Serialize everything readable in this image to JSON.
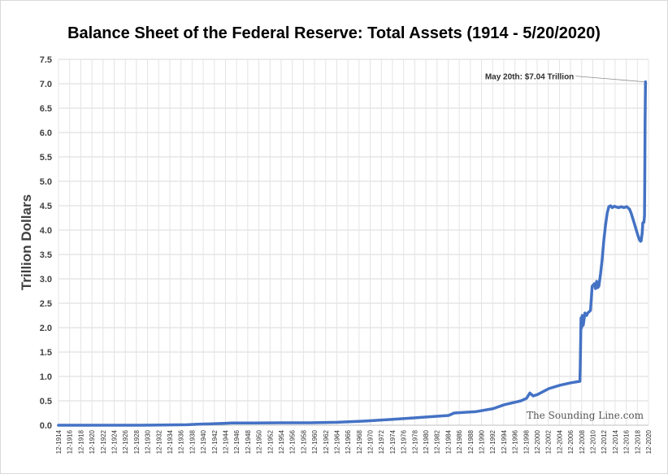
{
  "chart_data": {
    "type": "line",
    "title": "Balance Sheet of the Federal Reserve: Total Assets (1914 - 5/20/2020)",
    "ylabel": "Trillion Dollars",
    "xlabel": "",
    "ylim": [
      0,
      7.5
    ],
    "yticks": [
      "0.0",
      "0.5",
      "1.0",
      "1.5",
      "2.0",
      "2.5",
      "3.0",
      "3.5",
      "4.0",
      "4.5",
      "5.0",
      "5.5",
      "6.0",
      "6.5",
      "7.0",
      "7.5"
    ],
    "xlim": [
      1914.92,
      2020.92
    ],
    "xticks": [
      "12-1914",
      "12-1916",
      "12-1918",
      "12-1920",
      "12-1922",
      "12-1924",
      "12-1926",
      "12-1928",
      "12-1930",
      "12-1932",
      "12-1934",
      "12-1936",
      "12-1938",
      "12-1940",
      "12-1942",
      "12-1944",
      "12-1946",
      "12-1948",
      "12-1950",
      "12-1952",
      "12-1954",
      "12-1956",
      "12-1958",
      "12-1960",
      "12-1962",
      "12-1964",
      "12-1966",
      "12-1968",
      "12-1970",
      "12-1972",
      "12-1974",
      "12-1976",
      "12-1978",
      "12-1980",
      "12-1982",
      "12-1984",
      "12-1986",
      "12-1988",
      "12-1990",
      "12-1992",
      "12-1994",
      "12-1996",
      "12-1998",
      "12-2000",
      "12-2002",
      "12-2004",
      "12-2006",
      "12-2008",
      "12-2010",
      "12-2012",
      "12-2014",
      "12-2016",
      "12-2018",
      "12-2020"
    ],
    "grid": true,
    "series": [
      {
        "name": "Total Assets",
        "color": "#4472c4",
        "x": [
          1914.9,
          1920,
          1930,
          1938,
          1940,
          1945,
          1946,
          1950,
          1955,
          1960,
          1965,
          1970,
          1975,
          1980,
          1985,
          1986,
          1990,
          1993,
          1995,
          1998,
          1999,
          1999.6,
          2000.2,
          2001,
          2003,
          2005,
          2007,
          2008.6,
          2008.65,
          2008.8,
          2008.9,
          2009,
          2009.2,
          2009.5,
          2009.8,
          2010,
          2010.5,
          2010.8,
          2011.2,
          2011.4,
          2011.6,
          2011.8,
          2012,
          2012.3,
          2012.6,
          2012.9,
          2013.2,
          2013.5,
          2013.8,
          2014.1,
          2014.4,
          2014.8,
          2015.2,
          2015.6,
          2016,
          2016.5,
          2017,
          2017.5,
          2017.8,
          2018.2,
          2018.6,
          2019,
          2019.3,
          2019.5,
          2019.6,
          2019.8,
          2019.9,
          2020.1,
          2020.2,
          2020.25,
          2020.3,
          2020.38
        ],
        "values": [
          0.0,
          0.0,
          0.0,
          0.01,
          0.02,
          0.04,
          0.045,
          0.045,
          0.05,
          0.05,
          0.06,
          0.085,
          0.12,
          0.16,
          0.2,
          0.25,
          0.28,
          0.34,
          0.42,
          0.5,
          0.55,
          0.66,
          0.6,
          0.63,
          0.75,
          0.82,
          0.87,
          0.9,
          1.2,
          2.2,
          2.0,
          2.25,
          2.05,
          2.3,
          2.25,
          2.3,
          2.35,
          2.85,
          2.9,
          2.8,
          2.95,
          2.82,
          2.85,
          3.1,
          3.4,
          3.8,
          4.1,
          4.35,
          4.48,
          4.5,
          4.46,
          4.49,
          4.47,
          4.46,
          4.48,
          4.46,
          4.48,
          4.43,
          4.35,
          4.2,
          4.05,
          3.9,
          3.8,
          3.77,
          3.78,
          3.95,
          4.15,
          4.16,
          4.3,
          5.0,
          6.2,
          7.04
        ]
      }
    ],
    "annotations": [
      {
        "text": "May 20th: $7.04 Trillion",
        "x": 2020.38,
        "y": 7.04
      }
    ],
    "credit": "The Sounding Line.com"
  }
}
